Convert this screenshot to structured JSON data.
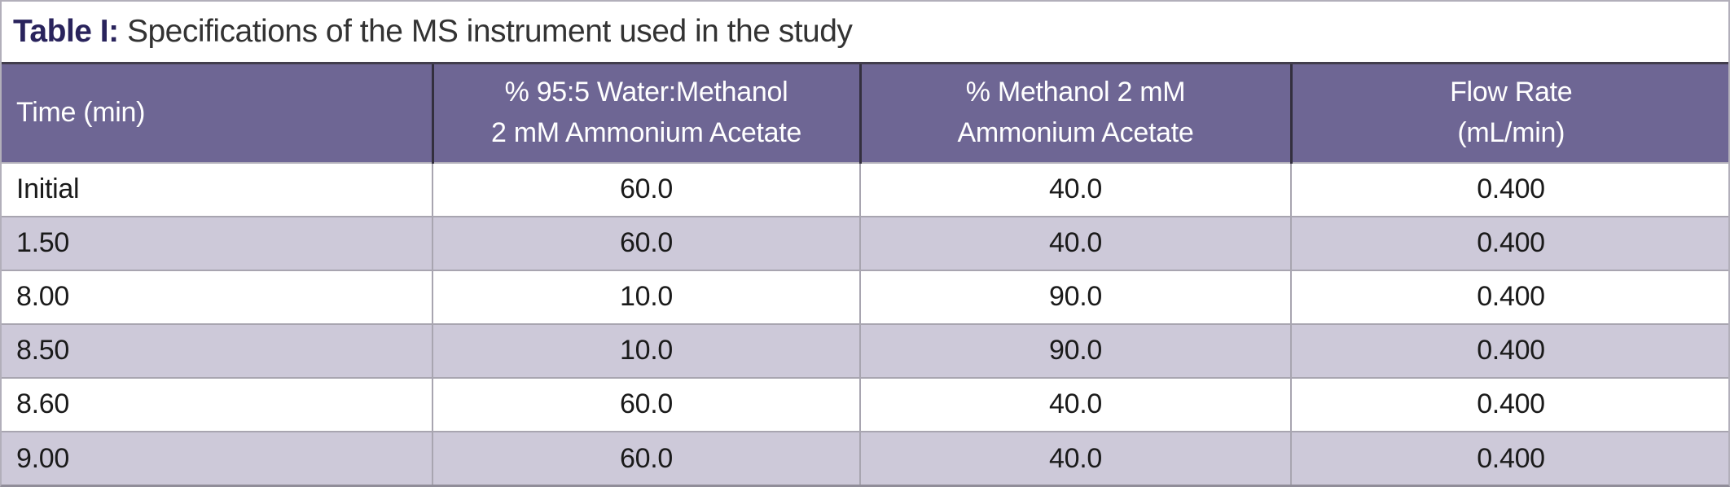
{
  "table": {
    "title": {
      "prefix": "Table I:",
      "text": " Specifications of the MS instrument used in the study"
    },
    "columns": [
      {
        "line1": "Time (min)",
        "line2": ""
      },
      {
        "line1": "% 95:5 Water:Methanol",
        "line2": "2 mM Ammonium Acetate"
      },
      {
        "line1": "% Methanol 2 mM",
        "line2": "Ammonium Acetate"
      },
      {
        "line1": "Flow Rate",
        "line2": "(mL/min)"
      }
    ],
    "rows": [
      [
        "Initial",
        "60.0",
        "40.0",
        "0.400"
      ],
      [
        "1.50",
        "60.0",
        "40.0",
        "0.400"
      ],
      [
        "8.00",
        "10.0",
        "90.0",
        "0.400"
      ],
      [
        "8.50",
        "10.0",
        "90.0",
        "0.400"
      ],
      [
        "8.60",
        "60.0",
        "40.0",
        "0.400"
      ],
      [
        "9.00",
        "60.0",
        "40.0",
        "0.400"
      ]
    ],
    "colors": {
      "header_bg": "#6e6694",
      "header_text": "#ffffff",
      "row_bg": "#ffffff",
      "row_alt_bg": "#cdc9d9",
      "title_accent": "#29235c",
      "title_text": "#333333",
      "border_light": "#a8a5b0",
      "border_dark": "#332f3e"
    }
  },
  "chart_data": {
    "type": "table",
    "title": "Table I: Specifications of the MS instrument used in the study",
    "categories": [
      "Time (min)",
      "% 95:5 Water:Methanol 2 mM Ammonium Acetate",
      "% Methanol 2 mM Ammonium Acetate",
      "Flow Rate (mL/min)"
    ],
    "rows": [
      [
        "Initial",
        60.0,
        40.0,
        0.4
      ],
      [
        1.5,
        60.0,
        40.0,
        0.4
      ],
      [
        8.0,
        10.0,
        90.0,
        0.4
      ],
      [
        8.5,
        10.0,
        90.0,
        0.4
      ],
      [
        8.6,
        60.0,
        40.0,
        0.4
      ],
      [
        9.0,
        60.0,
        40.0,
        0.4
      ]
    ]
  }
}
